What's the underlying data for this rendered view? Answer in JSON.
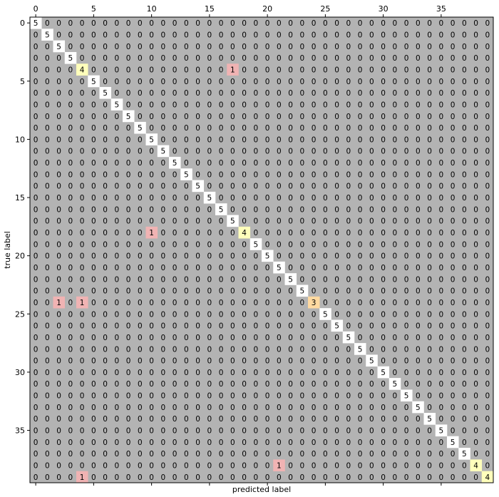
{
  "chart_data": {
    "type": "heatmap",
    "title": "",
    "xlabel": "predicted label",
    "ylabel": "true label",
    "n_classes": 40,
    "x_ticks": [
      0,
      5,
      10,
      15,
      20,
      25,
      30,
      35
    ],
    "y_ticks": [
      0,
      5,
      10,
      15,
      20,
      25,
      30,
      35
    ],
    "x_axis_position": "top",
    "grid": false,
    "default_value": 0,
    "diagonal_default": 5,
    "diagonal": [
      5,
      5,
      5,
      5,
      4,
      5,
      5,
      5,
      5,
      5,
      5,
      5,
      5,
      5,
      5,
      5,
      5,
      5,
      4,
      5,
      5,
      5,
      5,
      5,
      3,
      5,
      5,
      5,
      5,
      5,
      5,
      5,
      5,
      5,
      5,
      5,
      5,
      5,
      4,
      4
    ],
    "off_diagonal": [
      {
        "row": 4,
        "col": 17,
        "value": 1
      },
      {
        "row": 18,
        "col": 10,
        "value": 1
      },
      {
        "row": 24,
        "col": 2,
        "value": 1
      },
      {
        "row": 24,
        "col": 4,
        "value": 1
      },
      {
        "row": 38,
        "col": 21,
        "value": 1
      },
      {
        "row": 39,
        "col": 4,
        "value": 1
      }
    ],
    "colors": {
      "background": "#b3b3b3",
      "v5": "#ffffff",
      "v4": "#ffffbb",
      "v3": "#ffd9a0",
      "v1": "#f0b3b3"
    }
  }
}
